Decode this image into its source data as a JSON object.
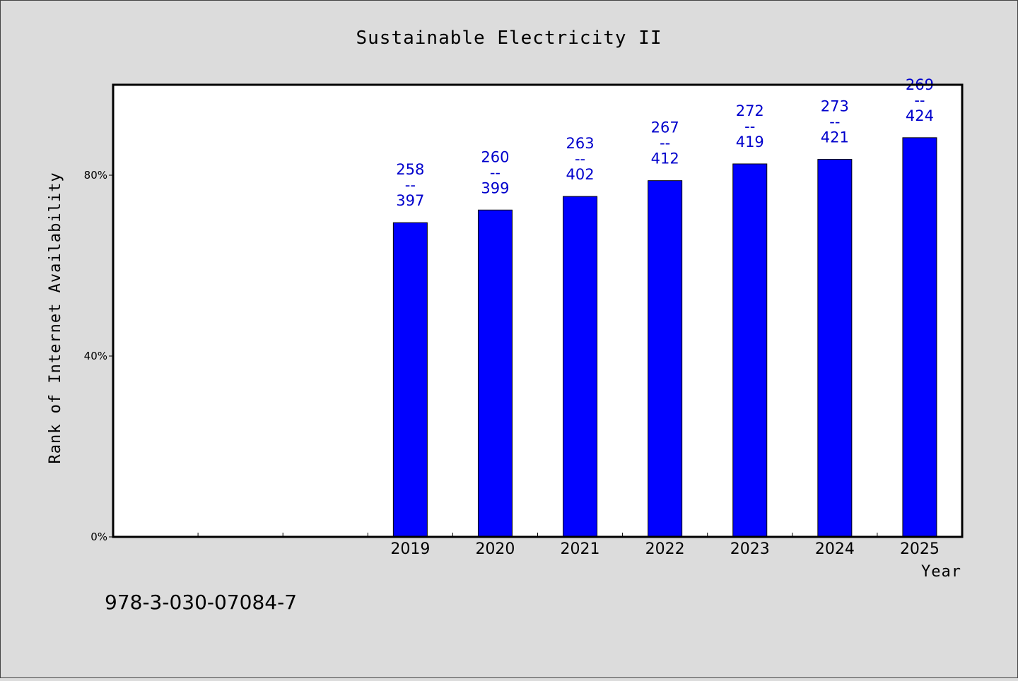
{
  "chart_data": {
    "type": "bar",
    "title": "Sustainable Electricity II",
    "xlabel": "Year",
    "ylabel": "Rank of Internet Availability",
    "categories": [
      "",
      "",
      "",
      "2019",
      "2020",
      "2021",
      "2022",
      "2023",
      "2024",
      "2025"
    ],
    "values": [
      null,
      null,
      null,
      69.5,
      72.3,
      75.3,
      78.8,
      82.5,
      83.5,
      88.3
    ],
    "data_labels": [
      null,
      null,
      null,
      [
        "258",
        "--",
        "397"
      ],
      [
        "260",
        "--",
        "399"
      ],
      [
        "263",
        "--",
        "402"
      ],
      [
        "267",
        "--",
        "412"
      ],
      [
        "272",
        "--",
        "419"
      ],
      [
        "273",
        "--",
        "421"
      ],
      [
        "269",
        "--",
        "424"
      ]
    ],
    "ylim": [
      0,
      100
    ],
    "yticks": [
      0,
      40,
      80
    ],
    "ytick_labels": [
      "0%",
      "40%",
      "80%"
    ],
    "grid": false,
    "bar_color": "#0000ff",
    "label_color": "#0000cc"
  },
  "footer": {
    "isbn": "978-3-030-07084-7"
  }
}
